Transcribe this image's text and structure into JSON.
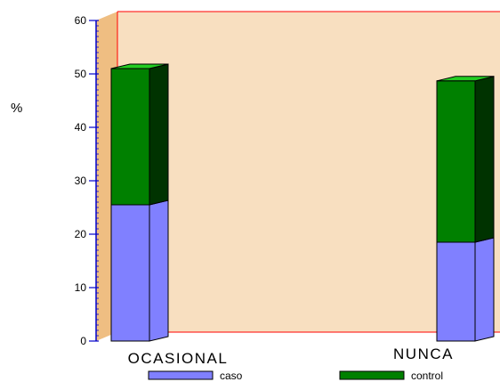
{
  "chart_data": {
    "type": "bar",
    "stacked": true,
    "three_d": true,
    "categories": [
      "OCASIONAL",
      "NUNCA"
    ],
    "series": [
      {
        "name": "caso",
        "values": [
          25.5,
          18.5
        ],
        "color": "#8080FF"
      },
      {
        "name": "control",
        "values": [
          25.5,
          30.2
        ],
        "color": "#008000"
      }
    ],
    "title": "",
    "xlabel": "",
    "ylabel": "%",
    "ylim": [
      0,
      60
    ],
    "yticks": [
      0,
      10,
      20,
      30,
      40,
      50,
      60
    ],
    "grid": false,
    "legend_position": "bottom",
    "colors": {
      "plot_background": "#F8DFC0",
      "side_wall": "#EFBE82",
      "frame": "#FF0000",
      "bar_outline": "#000000"
    }
  }
}
